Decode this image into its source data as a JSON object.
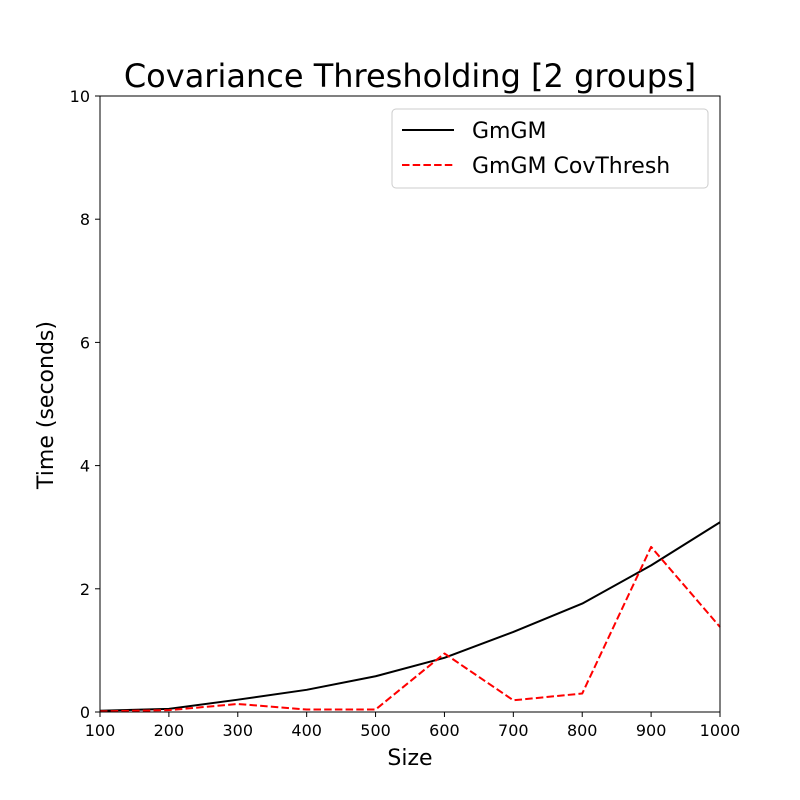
{
  "chart_data": {
    "type": "line",
    "title": "Covariance Thresholding [2 groups]",
    "xlabel": "Size",
    "ylabel": "Time (seconds)",
    "x": [
      100,
      200,
      300,
      400,
      500,
      600,
      700,
      800,
      900,
      1000
    ],
    "xlim": [
      100,
      1000
    ],
    "ylim": [
      0,
      10
    ],
    "xticks": [
      "100",
      "200",
      "300",
      "400",
      "500",
      "600",
      "700",
      "800",
      "900",
      "1000"
    ],
    "yticks": [
      "0",
      "2",
      "4",
      "6",
      "8",
      "10"
    ],
    "grid": false,
    "legend_position": "top-right",
    "series": [
      {
        "name": "GmGM",
        "color": "#000000",
        "style": "solid",
        "values": [
          0.02,
          0.05,
          0.2,
          0.36,
          0.58,
          0.88,
          1.3,
          1.76,
          2.38,
          3.08
        ]
      },
      {
        "name": "GmGM CovThresh",
        "color": "#ff0000",
        "style": "dashed",
        "values": [
          0.01,
          0.03,
          0.13,
          0.04,
          0.04,
          0.95,
          0.19,
          0.3,
          2.68,
          1.38
        ]
      }
    ]
  }
}
